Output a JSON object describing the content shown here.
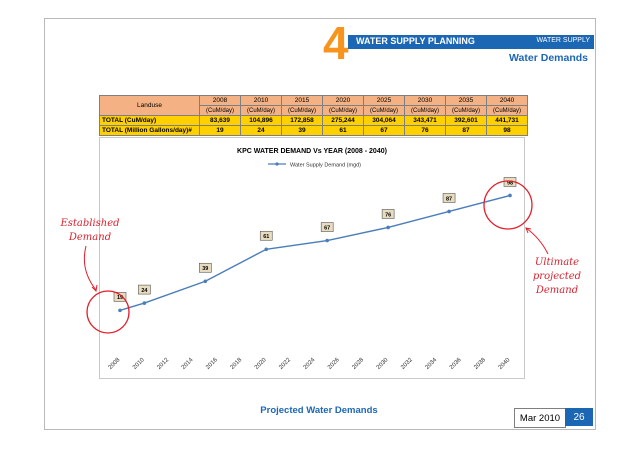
{
  "slide": {
    "section_number": "4",
    "header_title": "WATER SUPPLY PLANNING",
    "header_tag": "WATER SUPPLY",
    "section_title": "Water Demands",
    "footer_title": "Projected Water Demands",
    "date": "Mar 2010",
    "page": "26"
  },
  "table": {
    "label_header": "Landuse",
    "years": [
      "2008",
      "2010",
      "2015",
      "2020",
      "2025",
      "2030",
      "2035",
      "2040"
    ],
    "unit": "(CuM/day)",
    "rows": [
      {
        "label": "TOTAL (CuM/day)",
        "values": [
          "83,639",
          "104,896",
          "172,858",
          "275,244",
          "304,064",
          "343,471",
          "392,601",
          "441,731"
        ]
      },
      {
        "label": "TOTAL (Million Gallons/day)#",
        "values": [
          "19",
          "24",
          "39",
          "61",
          "67",
          "76",
          "87",
          "98"
        ]
      }
    ]
  },
  "annotations": {
    "left_line1": "Established",
    "left_line2": "Demand",
    "right_line1": "Ultimate",
    "right_line2": "projected",
    "right_line3": "Demand"
  },
  "colors": {
    "accent": "#1c67b4",
    "number": "#f7941d",
    "annotation": "#d9232e",
    "line": "#4a7ebb"
  },
  "chart_data": {
    "type": "line",
    "title": "KPC WATER DEMAND Vs YEAR (2008 - 2040)",
    "legend": "Water Supply Demand (mgd)",
    "x_ticks": [
      "2008",
      "2010",
      "2012",
      "2014",
      "2016",
      "2018",
      "2020",
      "2022",
      "2024",
      "2026",
      "2028",
      "2030",
      "2032",
      "2034",
      "2036",
      "2038",
      "2040"
    ],
    "x": [
      2008,
      2010,
      2015,
      2020,
      2025,
      2030,
      2035,
      2040
    ],
    "values": [
      19,
      24,
      39,
      61,
      67,
      76,
      87,
      98
    ],
    "xlim": [
      2008,
      2040
    ],
    "ylim": [
      0,
      110
    ]
  }
}
